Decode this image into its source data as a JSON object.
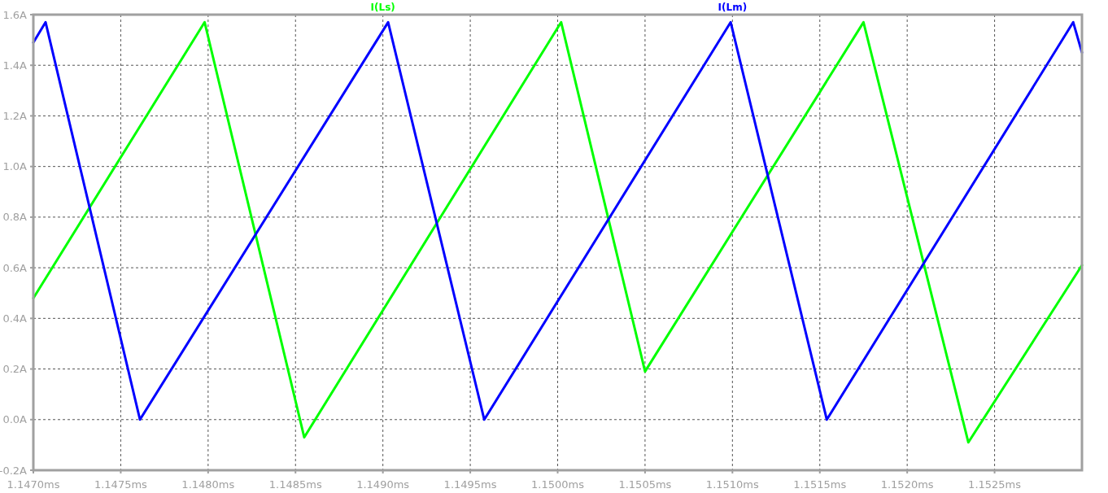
{
  "chart_data": {
    "type": "line",
    "legend": "top",
    "grid": true,
    "line_style": "solid",
    "marker": "none",
    "xlim": [
      1.147,
      1.153
    ],
    "xticks": [
      {
        "value": 1.147,
        "label": "1.1470ms"
      },
      {
        "value": 1.1475,
        "label": "1.1475ms"
      },
      {
        "value": 1.148,
        "label": "1.1480ms"
      },
      {
        "value": 1.1485,
        "label": "1.1485ms"
      },
      {
        "value": 1.149,
        "label": "1.1490ms"
      },
      {
        "value": 1.1495,
        "label": "1.1495ms"
      },
      {
        "value": 1.15,
        "label": "1.1500ms"
      },
      {
        "value": 1.1505,
        "label": "1.1505ms"
      },
      {
        "value": 1.151,
        "label": "1.1510ms"
      },
      {
        "value": 1.1515,
        "label": "1.1515ms"
      },
      {
        "value": 1.152,
        "label": "1.1520ms"
      },
      {
        "value": 1.1525,
        "label": "1.1525ms"
      }
    ],
    "ylim": [
      -0.2,
      1.6
    ],
    "yticks": [
      {
        "value": -0.2,
        "label": "-0.2A"
      },
      {
        "value": 0,
        "label": "0.0A"
      },
      {
        "value": 0.2,
        "label": "0.2A"
      },
      {
        "value": 0.4,
        "label": "0.4A"
      },
      {
        "value": 0.6,
        "label": "0.6A"
      },
      {
        "value": 0.8,
        "label": "0.8A"
      },
      {
        "value": 1,
        "label": "1.0A"
      },
      {
        "value": 1.2,
        "label": "1.2A"
      },
      {
        "value": 1.4,
        "label": "1.4A"
      },
      {
        "value": 1.6,
        "label": "1.6A"
      }
    ],
    "series": [
      {
        "name": "I(Ls)",
        "color": "#00ff00",
        "x": [
          1.147,
          1.14798,
          1.14855,
          1.15002,
          1.1505,
          1.15175,
          1.15235,
          1.153
        ],
        "values": [
          0.48,
          1.57,
          -0.07,
          1.57,
          0.19,
          1.57,
          -0.09,
          0.61
        ]
      },
      {
        "name": "I(Lm)",
        "color": "#0000ff",
        "x": [
          1.147,
          1.14707,
          1.14761,
          1.14903,
          1.14958,
          1.15099,
          1.15154,
          1.15295,
          1.153
        ],
        "values": [
          1.49,
          1.57,
          0.0,
          1.57,
          0.0,
          1.57,
          0.0,
          1.57,
          1.45
        ]
      }
    ]
  }
}
